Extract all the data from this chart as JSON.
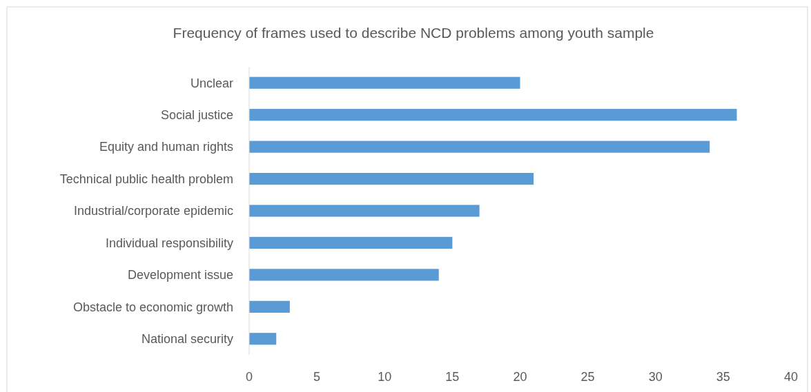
{
  "chart_data": {
    "type": "bar",
    "orientation": "horizontal",
    "title": "Frequency of frames used to describe NCD problems among youth sample",
    "categories": [
      "Unclear",
      "Social justice",
      "Equity and human rights",
      "Technical public health problem",
      "Industrial/corporate epidemic",
      "Individual responsibility",
      "Development issue",
      "Obstacle to economic growth",
      "National security"
    ],
    "values": [
      20,
      36,
      34,
      21,
      17,
      15,
      14,
      3,
      2
    ],
    "color": "#5b9bd5",
    "xlim": [
      0,
      40
    ],
    "xticks": [
      0,
      5,
      10,
      15,
      20,
      25,
      30,
      35,
      40
    ]
  }
}
